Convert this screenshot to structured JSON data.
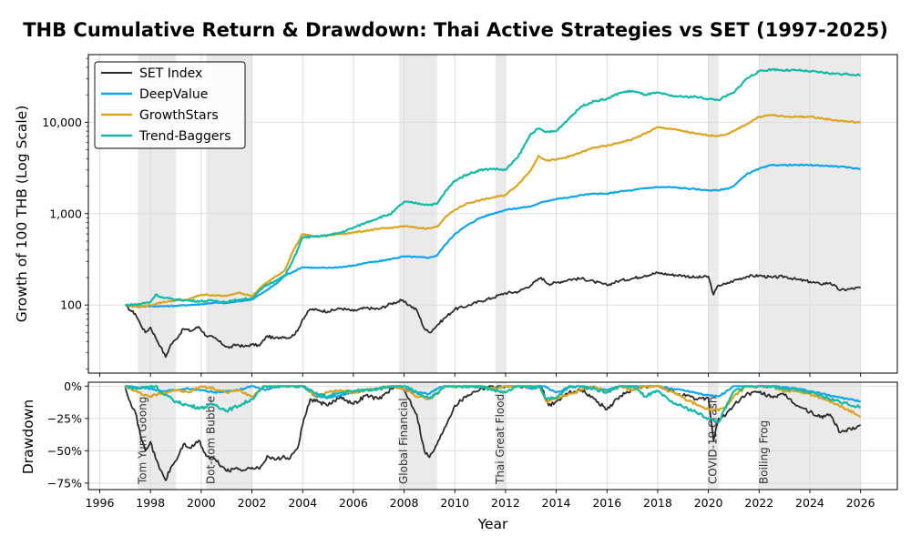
{
  "chart_data": {
    "type": "line",
    "title": "THB Cumulative Return & Drawdown: Thai Active Strategies vs SET (1997-2025)",
    "top_panel": {
      "ylabel": "Growth of 100 THB (Log Scale)",
      "yscale": "log",
      "ylim": [
        18,
        55000
      ],
      "yticks": [
        100,
        1000,
        10000
      ],
      "ytick_labels": [
        "100",
        "1,000",
        "10,000"
      ],
      "grid": true,
      "legend_position": "top-left"
    },
    "bottom_panel": {
      "ylabel": "Drawdown",
      "ylim": [
        -0.8,
        0.03
      ],
      "yticks": [
        0,
        -0.25,
        -0.5,
        -0.75
      ],
      "ytick_labels": [
        "0%",
        "−25%",
        "−50%",
        "−75%"
      ],
      "grid": true
    },
    "xlabel": "Year",
    "xlim": [
      1995.55,
      2027.45
    ],
    "xticks": [
      1996,
      1998,
      2000,
      2002,
      2004,
      2006,
      2008,
      2010,
      2012,
      2014,
      2016,
      2018,
      2020,
      2022,
      2024,
      2026
    ],
    "xtick_labels": [
      "1996",
      "1998",
      "2000",
      "2002",
      "2004",
      "2006",
      "2008",
      "2010",
      "2012",
      "2014",
      "2016",
      "2018",
      "2020",
      "2022",
      "2024",
      "2026"
    ],
    "crisis_periods": [
      {
        "label": "Tom Yum Goong",
        "start": 1997.5,
        "end": 1999.0
      },
      {
        "label": "Dot-com Bubble",
        "start": 2000.2,
        "end": 2002.0
      },
      {
        "label": "Global Financial",
        "start": 2007.8,
        "end": 2009.3
      },
      {
        "label": "Thai Great Flood",
        "start": 2011.6,
        "end": 2012.0
      },
      {
        "label": "COVID-19 Crash",
        "start": 2020.0,
        "end": 2020.4
      },
      {
        "label": "Boiling Frog",
        "start": 2022.0,
        "end": 2026.0
      }
    ],
    "series": [
      {
        "name": "SET Index",
        "color": "#2b2b2b",
        "x": [
          1997.0,
          1997.2,
          1997.4,
          1997.6,
          1997.8,
          1998.0,
          1998.2,
          1998.4,
          1998.6,
          1998.8,
          1999.0,
          1999.3,
          1999.6,
          1999.9,
          2000.2,
          2000.5,
          2000.8,
          2001.1,
          2001.4,
          2001.7,
          2002.0,
          2002.3,
          2002.6,
          2002.9,
          2003.2,
          2003.5,
          2003.8,
          2004.0,
          2004.3,
          2004.6,
          2005.0,
          2005.5,
          2006.0,
          2006.5,
          2007.0,
          2007.5,
          2007.9,
          2008.2,
          2008.5,
          2008.8,
          2009.0,
          2009.3,
          2009.6,
          2010.0,
          2010.5,
          2011.0,
          2011.5,
          2011.8,
          2012.0,
          2012.5,
          2013.0,
          2013.4,
          2013.7,
          2014.0,
          2014.5,
          2015.0,
          2015.5,
          2016.0,
          2016.5,
          2017.0,
          2017.5,
          2018.0,
          2018.5,
          2019.0,
          2019.5,
          2020.0,
          2020.2,
          2020.4,
          2020.7,
          2021.0,
          2021.5,
          2022.0,
          2022.5,
          2023.0,
          2023.5,
          2024.0,
          2024.4,
          2024.8,
          2025.2,
          2025.6,
          2026.0
        ],
        "values": [
          100,
          88,
          80,
          62,
          50,
          57,
          44,
          35,
          27,
          37,
          42,
          55,
          52,
          58,
          46,
          44,
          38,
          34,
          37,
          35,
          37,
          36,
          46,
          43,
          45,
          44,
          52,
          70,
          90,
          88,
          85,
          92,
          86,
          93,
          90,
          104,
          112,
          100,
          88,
          55,
          50,
          60,
          72,
          90,
          98,
          110,
          120,
          130,
          135,
          140,
          165,
          200,
          170,
          175,
          190,
          195,
          180,
          165,
          185,
          195,
          210,
          225,
          215,
          210,
          200,
          205,
          130,
          165,
          170,
          185,
          205,
          210,
          200,
          205,
          190,
          180,
          170,
          175,
          145,
          150,
          155
        ],
        "drawdown": [
          0,
          -0.12,
          -0.2,
          -0.38,
          -0.5,
          -0.43,
          -0.56,
          -0.65,
          -0.73,
          -0.63,
          -0.58,
          -0.45,
          -0.48,
          -0.42,
          -0.54,
          -0.56,
          -0.62,
          -0.66,
          -0.63,
          -0.65,
          -0.63,
          -0.64,
          -0.54,
          -0.57,
          -0.55,
          -0.56,
          -0.48,
          -0.3,
          -0.1,
          -0.12,
          -0.15,
          -0.08,
          -0.14,
          -0.07,
          -0.1,
          -0.02,
          0,
          -0.1,
          -0.22,
          -0.5,
          -0.55,
          -0.45,
          -0.32,
          -0.15,
          -0.07,
          -0.02,
          0,
          0,
          0,
          0,
          0,
          0,
          -0.15,
          -0.12,
          -0.05,
          -0.03,
          -0.1,
          -0.18,
          -0.08,
          -0.03,
          0,
          0,
          -0.04,
          -0.07,
          -0.1,
          -0.09,
          -0.42,
          -0.25,
          -0.22,
          -0.15,
          -0.06,
          -0.05,
          -0.08,
          -0.07,
          -0.15,
          -0.2,
          -0.24,
          -0.22,
          -0.36,
          -0.33,
          -0.3
        ]
      },
      {
        "name": "DeepValue",
        "color": "#0ea5e9",
        "x": [
          1997.0,
          1997.5,
          1998.0,
          1998.5,
          1999.0,
          1999.5,
          2000.0,
          2000.5,
          2001.0,
          2001.5,
          2002.0,
          2002.5,
          2003.0,
          2003.3,
          2003.6,
          2004.0,
          2004.5,
          2005.0,
          2005.5,
          2006.0,
          2006.5,
          2007.0,
          2007.5,
          2008.0,
          2008.5,
          2009.0,
          2009.3,
          2009.6,
          2010.0,
          2010.5,
          2011.0,
          2011.5,
          2012.0,
          2012.5,
          2013.0,
          2013.5,
          2014.0,
          2014.5,
          2015.0,
          2015.5,
          2016.0,
          2016.5,
          2017.0,
          2017.5,
          2018.0,
          2018.5,
          2019.0,
          2019.5,
          2020.0,
          2020.4,
          2020.8,
          2021.0,
          2021.5,
          2022.0,
          2022.5,
          2023.0,
          2023.5,
          2024.0,
          2024.5,
          2025.0,
          2025.5,
          2026.0
        ],
        "values": [
          100,
          97,
          97,
          97,
          98,
          100,
          102,
          106,
          105,
          110,
          115,
          140,
          175,
          210,
          230,
          260,
          255,
          255,
          260,
          270,
          290,
          300,
          320,
          340,
          335,
          330,
          350,
          450,
          600,
          750,
          900,
          1000,
          1100,
          1150,
          1200,
          1350,
          1450,
          1500,
          1600,
          1650,
          1650,
          1750,
          1800,
          1900,
          1950,
          1950,
          1900,
          1850,
          1800,
          1800,
          1900,
          2000,
          2700,
          3100,
          3400,
          3400,
          3400,
          3400,
          3350,
          3300,
          3200,
          3100
        ],
        "drawdown": [
          0,
          -0.01,
          -0.02,
          -0.04,
          -0.03,
          -0.02,
          -0.03,
          -0.05,
          -0.04,
          -0.03,
          0,
          -0.03,
          0,
          0,
          0,
          0,
          -0.08,
          -0.09,
          -0.07,
          -0.05,
          -0.03,
          -0.02,
          0,
          -0.02,
          -0.05,
          -0.06,
          -0.02,
          0,
          0,
          0,
          0,
          -0.02,
          0,
          0,
          -0.02,
          0,
          -0.05,
          -0.01,
          0,
          -0.02,
          -0.03,
          0,
          0,
          0,
          0,
          -0.02,
          -0.03,
          -0.05,
          -0.07,
          -0.08,
          -0.03,
          0,
          0,
          0,
          0,
          -0.01,
          -0.02,
          -0.04,
          -0.06,
          -0.08,
          -0.1,
          -0.12
        ]
      },
      {
        "name": "GrowthStars",
        "color": "#daa520",
        "x": [
          1997.0,
          1997.5,
          1998.0,
          1998.5,
          1999.0,
          1999.5,
          2000.0,
          2000.5,
          2001.0,
          2001.5,
          2002.0,
          2002.5,
          2003.0,
          2003.3,
          2003.6,
          2004.0,
          2004.5,
          2005.0,
          2005.5,
          2006.0,
          2006.5,
          2007.0,
          2007.5,
          2008.0,
          2008.5,
          2009.0,
          2009.3,
          2009.6,
          2010.0,
          2010.5,
          2011.0,
          2011.5,
          2012.0,
          2012.5,
          2013.0,
          2013.3,
          2013.6,
          2014.0,
          2014.5,
          2015.0,
          2015.5,
          2016.0,
          2016.5,
          2017.0,
          2017.5,
          2018.0,
          2018.5,
          2019.0,
          2019.5,
          2020.0,
          2020.4,
          2020.8,
          2021.0,
          2021.5,
          2022.0,
          2022.5,
          2023.0,
          2023.5,
          2024.0,
          2024.5,
          2025.0,
          2025.5,
          2026.0
        ],
        "values": [
          100,
          95,
          100,
          108,
          112,
          115,
          130,
          128,
          125,
          138,
          125,
          170,
          210,
          240,
          380,
          600,
          560,
          580,
          600,
          620,
          650,
          680,
          700,
          730,
          700,
          690,
          720,
          900,
          1100,
          1300,
          1400,
          1500,
          1600,
          2100,
          3000,
          4300,
          3800,
          3900,
          4200,
          4700,
          5300,
          5500,
          6000,
          6500,
          7500,
          8800,
          8500,
          8000,
          7500,
          7200,
          7100,
          7500,
          8000,
          9500,
          11500,
          12000,
          11500,
          11500,
          11500,
          11000,
          10500,
          10200,
          9900
        ],
        "drawdown": [
          0,
          -0.05,
          -0.08,
          -0.05,
          -0.03,
          -0.05,
          0,
          -0.02,
          -0.05,
          -0.03,
          -0.08,
          0,
          0,
          0,
          0,
          0,
          -0.07,
          -0.05,
          -0.03,
          -0.05,
          -0.03,
          -0.02,
          0,
          -0.02,
          -0.08,
          -0.1,
          -0.06,
          0,
          0,
          0,
          0,
          -0.02,
          0,
          0,
          0,
          0,
          -0.12,
          -0.1,
          -0.06,
          -0.03,
          0,
          -0.05,
          0,
          -0.03,
          0,
          0,
          -0.04,
          -0.09,
          -0.14,
          -0.18,
          -0.19,
          -0.14,
          -0.08,
          0,
          0,
          0,
          -0.04,
          -0.04,
          -0.06,
          -0.1,
          -0.14,
          -0.18,
          -0.24
        ]
      },
      {
        "name": "Trend-Baggers",
        "color": "#14b8a6",
        "x": [
          1997.0,
          1997.5,
          1998.0,
          1998.2,
          1998.5,
          1999.0,
          1999.5,
          2000.0,
          2000.5,
          2001.0,
          2001.5,
          2002.0,
          2002.5,
          2003.0,
          2003.3,
          2003.6,
          2004.0,
          2004.5,
          2005.0,
          2005.5,
          2006.0,
          2006.5,
          2007.0,
          2007.5,
          2008.0,
          2008.5,
          2009.0,
          2009.3,
          2009.6,
          2010.0,
          2010.5,
          2011.0,
          2011.5,
          2012.0,
          2012.5,
          2013.0,
          2013.3,
          2013.6,
          2014.0,
          2014.5,
          2015.0,
          2015.5,
          2016.0,
          2016.5,
          2017.0,
          2017.5,
          2018.0,
          2018.5,
          2019.0,
          2019.5,
          2020.0,
          2020.4,
          2020.8,
          2021.0,
          2021.5,
          2022.0,
          2022.5,
          2023.0,
          2023.5,
          2024.0,
          2024.5,
          2025.0,
          2025.5,
          2026.0
        ],
        "values": [
          100,
          102,
          108,
          130,
          120,
          115,
          112,
          110,
          112,
          108,
          115,
          118,
          160,
          190,
          210,
          300,
          550,
          560,
          580,
          620,
          700,
          800,
          900,
          1000,
          1350,
          1300,
          1250,
          1280,
          1700,
          2300,
          2700,
          3000,
          3100,
          3000,
          4200,
          7500,
          8500,
          7800,
          8000,
          11000,
          15000,
          17000,
          18000,
          21000,
          22000,
          20000,
          21000,
          19500,
          19000,
          19000,
          18000,
          17500,
          20000,
          21000,
          30000,
          36000,
          38000,
          37000,
          37000,
          36000,
          35000,
          34000,
          33500,
          33000
        ],
        "drawdown": [
          0,
          -0.02,
          0,
          0,
          -0.06,
          -0.12,
          -0.15,
          -0.17,
          -0.14,
          -0.19,
          -0.15,
          -0.1,
          0,
          0,
          0,
          0,
          0,
          -0.06,
          -0.08,
          -0.05,
          -0.04,
          -0.03,
          -0.02,
          0,
          0,
          -0.05,
          -0.09,
          -0.06,
          0,
          0,
          0,
          0,
          -0.03,
          -0.05,
          0,
          0,
          0,
          -0.1,
          -0.09,
          0,
          0,
          -0.02,
          -0.05,
          0,
          0,
          -0.08,
          -0.04,
          -0.12,
          -0.16,
          -0.2,
          -0.25,
          -0.28,
          -0.12,
          -0.04,
          0,
          0,
          0,
          -0.02,
          -0.03,
          -0.05,
          -0.08,
          -0.11,
          -0.14,
          -0.16
        ]
      }
    ]
  }
}
